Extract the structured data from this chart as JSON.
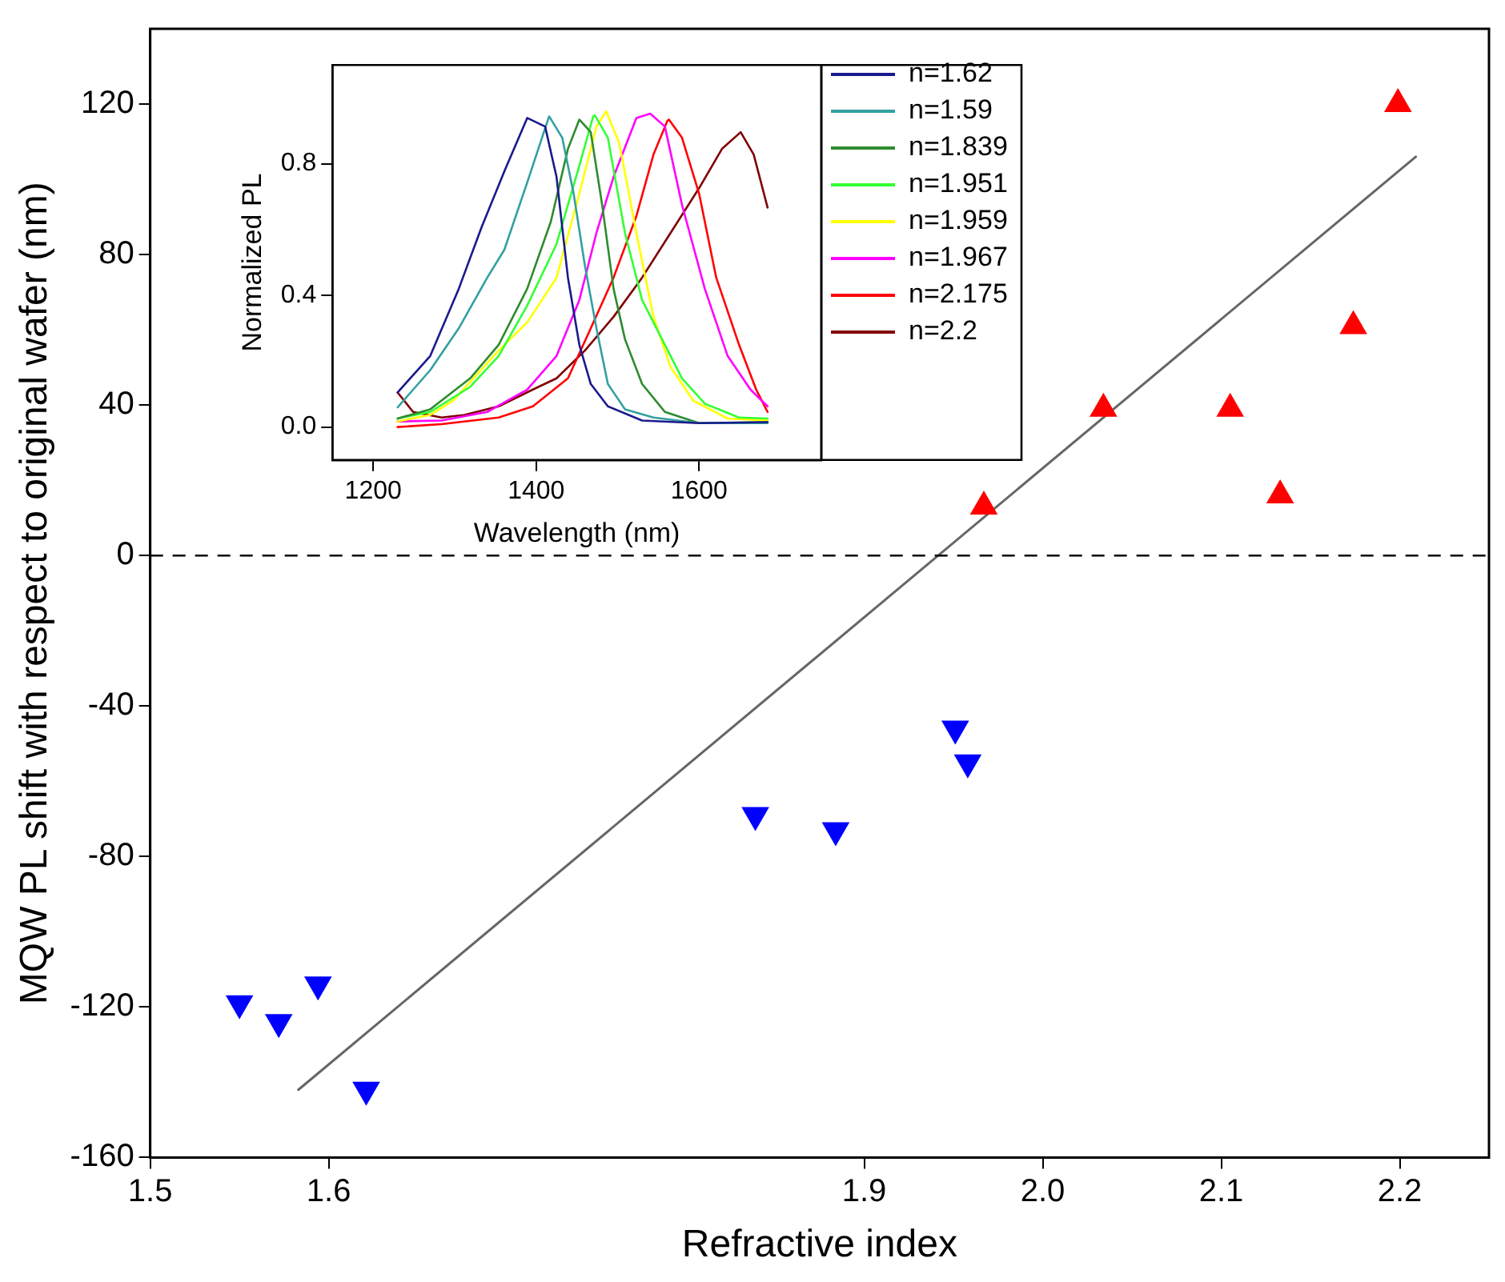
{
  "chart_data": [
    {
      "type": "scatter",
      "xlabel": "Refractive index",
      "ylabel": "MQW PL shift with respect to original wafer (nm)",
      "xlim": [
        1.5,
        2.25
      ],
      "xticks": [
        1.5,
        1.6,
        1.9,
        {
          "value": 2,
          "label": "2.0"
        },
        2.1,
        2.2
      ],
      "ylim": [
        -160,
        140
      ],
      "yticks": [
        -160,
        -120,
        -80,
        -40,
        0,
        40,
        80,
        120
      ],
      "grid": false,
      "legend": false,
      "ref_lines": [
        {
          "axis": "y",
          "value": 0,
          "color": "#000000",
          "line_style": "dashed"
        }
      ],
      "series": [
        {
          "color": "#0000ff",
          "marker": "triangle-down",
          "x": [
            1.55,
            1.572,
            1.594,
            1.621,
            1.839,
            1.884,
            1.951,
            1.958
          ],
          "values": [
            -119,
            -124,
            -114,
            -142,
            -69,
            -73,
            -46,
            -55
          ]
        },
        {
          "color": "#ff0000",
          "marker": "triangle",
          "x": [
            1.967,
            2.034,
            2.105,
            2.133,
            2.174,
            2.199
          ],
          "values": [
            13,
            39,
            39,
            16,
            61,
            120
          ]
        },
        {
          "type": "line",
          "color": "#666666",
          "marker": "none",
          "line_style": "solid",
          "x": [
            1.583,
            2.209
          ],
          "values": [
            -142,
            106
          ]
        }
      ]
    },
    {
      "type": "line",
      "xlabel": "Wavelength (nm)",
      "ylabel": "Normalized PL",
      "xlim": [
        1150,
        1750
      ],
      "xticks": [
        1200,
        1400,
        1600
      ],
      "ylim": [
        -0.1,
        1.1
      ],
      "yticks": [
        {
          "value": 0,
          "label": "0.0"
        },
        0.4,
        0.8
      ],
      "grid": false,
      "legend": "right",
      "marker": "none",
      "line_style": "solid",
      "series": [
        {
          "name": "n=1.62",
          "color": "#1a1a8c",
          "x": [
            1230,
            1270,
            1305,
            1333,
            1361,
            1389,
            1411,
            1425,
            1439,
            1453,
            1467,
            1488,
            1530,
            1600,
            1684
          ],
          "values": [
            0.105,
            0.216,
            0.42,
            0.607,
            0.777,
            0.939,
            0.913,
            0.76,
            0.454,
            0.25,
            0.131,
            0.063,
            0.02,
            0.012,
            0.015
          ]
        },
        {
          "name": "n=1.59",
          "color": "#33a0a0",
          "x": [
            1230,
            1270,
            1305,
            1340,
            1361,
            1389,
            1414,
            1416,
            1432,
            1446,
            1460,
            1474,
            1488,
            1509,
            1544,
            1600,
            1684
          ],
          "values": [
            0.06,
            0.173,
            0.3,
            0.454,
            0.539,
            0.743,
            0.93,
            0.944,
            0.879,
            0.709,
            0.488,
            0.3,
            0.131,
            0.054,
            0.029,
            0.012,
            0.012
          ]
        },
        {
          "name": "n=1.839",
          "color": "#2e8b2e",
          "x": [
            1230,
            1270,
            1319,
            1354,
            1389,
            1418,
            1439,
            1453,
            1467,
            1481,
            1495,
            1509,
            1530,
            1558,
            1600,
            1684
          ],
          "values": [
            0.026,
            0.054,
            0.148,
            0.25,
            0.42,
            0.624,
            0.845,
            0.934,
            0.896,
            0.675,
            0.42,
            0.267,
            0.131,
            0.046,
            0.012,
            0.015
          ]
        },
        {
          "name": "n=1.951",
          "color": "#33ff33",
          "x": [
            1230,
            1270,
            1319,
            1354,
            1389,
            1425,
            1453,
            1470,
            1472,
            1488,
            1509,
            1530,
            1551,
            1579,
            1607,
            1649,
            1684
          ],
          "values": [
            0.026,
            0.046,
            0.122,
            0.216,
            0.369,
            0.556,
            0.794,
            0.944,
            0.947,
            0.879,
            0.59,
            0.386,
            0.284,
            0.148,
            0.071,
            0.029,
            0.026
          ]
        },
        {
          "name": "n=1.959",
          "color": "#ffff00",
          "x": [
            1230,
            1270,
            1298,
            1354,
            1389,
            1425,
            1453,
            1474,
            1486,
            1502,
            1523,
            1544,
            1565,
            1593,
            1635,
            1684
          ],
          "values": [
            0.017,
            0.037,
            0.08,
            0.233,
            0.318,
            0.454,
            0.709,
            0.913,
            0.959,
            0.862,
            0.59,
            0.335,
            0.182,
            0.08,
            0.026,
            0.02
          ]
        },
        {
          "name": "n=1.967",
          "color": "#ff00ff",
          "x": [
            1230,
            1284,
            1340,
            1389,
            1425,
            1453,
            1474,
            1495,
            1523,
            1540,
            1558,
            1579,
            1607,
            1635,
            1663,
            1684
          ],
          "values": [
            0.017,
            0.02,
            0.046,
            0.114,
            0.216,
            0.386,
            0.59,
            0.76,
            0.939,
            0.952,
            0.913,
            0.675,
            0.42,
            0.216,
            0.114,
            0.063
          ]
        },
        {
          "name": "n=2.175",
          "color": "#ff0000",
          "x": [
            1230,
            1284,
            1354,
            1396,
            1439,
            1467,
            1495,
            1523,
            1544,
            1561,
            1563,
            1579,
            1600,
            1621,
            1649,
            1670,
            1684
          ],
          "values": [
            0,
            0.009,
            0.029,
            0.063,
            0.148,
            0.3,
            0.454,
            0.641,
            0.828,
            0.93,
            0.934,
            0.879,
            0.709,
            0.454,
            0.25,
            0.114,
            0.046
          ]
        },
        {
          "name": "n=2.2",
          "color": "#800000",
          "x": [
            1230,
            1249,
            1284,
            1312,
            1354,
            1396,
            1425,
            1460,
            1495,
            1530,
            1565,
            1600,
            1628,
            1651,
            1667,
            1684
          ],
          "values": [
            0.105,
            0.046,
            0.029,
            0.037,
            0.063,
            0.114,
            0.148,
            0.233,
            0.335,
            0.454,
            0.59,
            0.726,
            0.845,
            0.896,
            0.828,
            0.667
          ]
        }
      ]
    }
  ]
}
